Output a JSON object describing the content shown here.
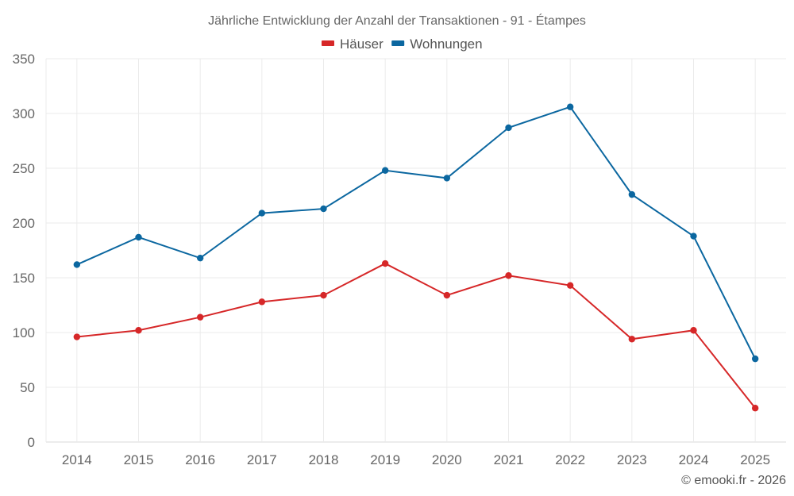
{
  "chart_data": {
    "type": "line",
    "title": "Jährliche Entwicklung der Anzahl der Transaktionen - 91 - Étampes",
    "xlabel": "",
    "ylabel": "",
    "categories": [
      "2014",
      "2015",
      "2016",
      "2017",
      "2018",
      "2019",
      "2020",
      "2021",
      "2022",
      "2023",
      "2024",
      "2025"
    ],
    "ylim": [
      0,
      350
    ],
    "yticks": [
      0,
      50,
      100,
      150,
      200,
      250,
      300,
      350
    ],
    "grid": true,
    "legend_position": "top-center",
    "series": [
      {
        "name": "Häuser",
        "color": "#d62728",
        "values": [
          96,
          102,
          114,
          128,
          134,
          163,
          134,
          152,
          143,
          94,
          102,
          31
        ]
      },
      {
        "name": "Wohnungen",
        "color": "#0b67a0",
        "values": [
          162,
          187,
          168,
          209,
          213,
          248,
          241,
          287,
          306,
          226,
          188,
          76
        ]
      }
    ],
    "credit": "© emooki.fr - 2026"
  }
}
